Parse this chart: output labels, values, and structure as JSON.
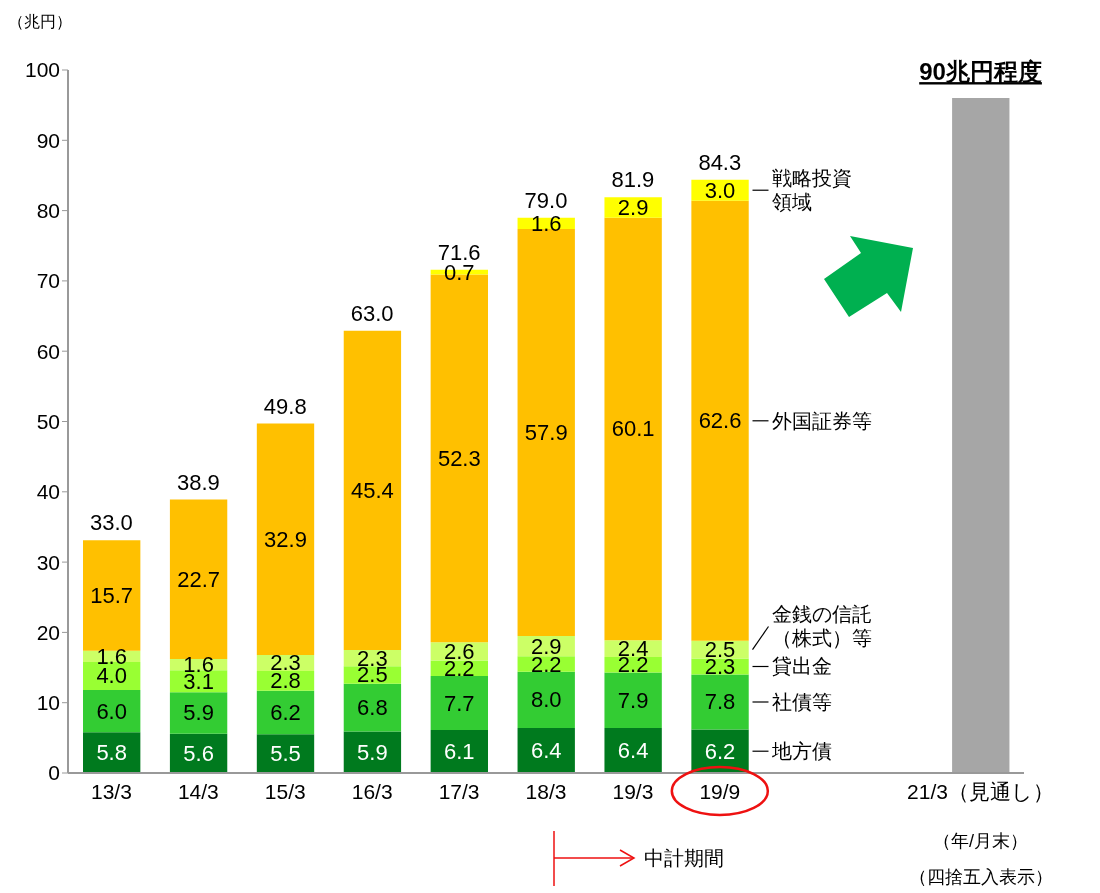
{
  "chart_data": {
    "type": "bar",
    "stacked": true,
    "ylabel": "（兆円）",
    "categories": [
      "13/3",
      "14/3",
      "15/3",
      "16/3",
      "17/3",
      "18/3",
      "19/3",
      "19/9",
      null,
      null,
      "21/3（見通し）"
    ],
    "series": [
      {
        "name": "地方債",
        "color": "#007a1e",
        "values": [
          5.8,
          5.6,
          5.5,
          5.9,
          6.1,
          6.4,
          6.4,
          6.2,
          null,
          null,
          null
        ],
        "value_labels": [
          "5.8",
          "5.6",
          "5.5",
          "5.9",
          "6.1",
          "6.4",
          "6.4",
          "6.2",
          null,
          null,
          null
        ]
      },
      {
        "name": "社債等",
        "color": "#33cc33",
        "values": [
          6.0,
          5.9,
          6.2,
          6.8,
          7.7,
          8.0,
          7.9,
          7.8,
          null,
          null,
          null
        ],
        "value_labels": [
          "6.0",
          "5.9",
          "6.2",
          "6.8",
          "7.7",
          "8.0",
          "7.9",
          "7.8",
          null,
          null,
          null
        ]
      },
      {
        "name": "貸出金",
        "color": "#99ff33",
        "values": [
          4.0,
          3.1,
          2.8,
          2.5,
          2.2,
          2.2,
          2.2,
          2.3,
          null,
          null,
          null
        ],
        "value_labels": [
          "4.0",
          "3.1",
          "2.8",
          "2.5",
          "2.2",
          "2.2",
          "2.2",
          "2.3",
          null,
          null,
          null
        ]
      },
      {
        "name": "金銭の信託（株式）等",
        "color": "#ccff66",
        "values": [
          1.6,
          1.6,
          2.3,
          2.3,
          2.6,
          2.9,
          2.4,
          2.5,
          null,
          null,
          null
        ],
        "value_labels": [
          "1.6",
          "1.6",
          "2.3",
          "2.3",
          "2.6",
          "2.9",
          "2.4",
          "2.5",
          null,
          null,
          null
        ]
      },
      {
        "name": "外国証券等",
        "color": "#ffc000",
        "values": [
          15.7,
          22.7,
          32.9,
          45.4,
          52.3,
          57.9,
          60.1,
          62.6,
          null,
          null,
          null
        ],
        "value_labels": [
          "15.7",
          "22.7",
          "32.9",
          "45.4",
          "52.3",
          "57.9",
          "60.1",
          "62.6",
          null,
          null,
          null
        ]
      },
      {
        "name": "戦略投資領域",
        "color": "#ffff00",
        "values": [
          null,
          null,
          null,
          null,
          0.7,
          1.6,
          2.9,
          3.0,
          null,
          null,
          null
        ],
        "value_labels": [
          null,
          null,
          null,
          null,
          "0.7",
          "1.6",
          "2.9",
          "3.0",
          null,
          null,
          null
        ]
      },
      {
        "color": "#a6a6a6",
        "values": [
          null,
          null,
          null,
          null,
          null,
          null,
          null,
          null,
          null,
          null,
          96
        ]
      }
    ],
    "totals": [
      "33.0",
      "38.9",
      "49.8",
      "63.0",
      "71.6",
      "79.0",
      "81.9",
      "84.3",
      null,
      null,
      null
    ],
    "ylim": [
      0,
      100
    ],
    "yticks": [
      0,
      10,
      20,
      30,
      40,
      50,
      60,
      70,
      80,
      90,
      100
    ],
    "annotations": [
      {
        "text": "90兆円程度",
        "x": "21/3（見通し）",
        "y": 96
      },
      "中計期間",
      "（年/月末）",
      "（四捨五入表示）"
    ]
  }
}
